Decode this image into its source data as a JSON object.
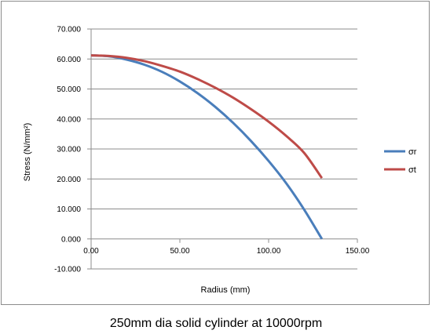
{
  "caption": "250mm dia solid cylinder at 10000rpm",
  "chart_data": {
    "type": "line",
    "title": "",
    "xlabel": "Radius (mm)",
    "ylabel": "Stress (N/mm²)",
    "xlim": [
      0,
      150
    ],
    "ylim": [
      -10,
      70
    ],
    "x_ticks": [
      "0.00",
      "50.00",
      "100.00",
      "150.00"
    ],
    "y_ticks": [
      "-10.000",
      "0.000",
      "10.000",
      "20.000",
      "30.000",
      "40.000",
      "50.000",
      "60.000",
      "70.000"
    ],
    "grid": "horizontal",
    "legend_position": "right",
    "x": [
      0,
      10,
      20,
      30,
      40,
      50,
      60,
      70,
      80,
      90,
      100,
      110,
      120,
      130
    ],
    "series": [
      {
        "name": "σr",
        "color": "#4a7ebb",
        "values": [
          61.2,
          60.9,
          59.8,
          58.1,
          55.7,
          52.5,
          48.6,
          44.0,
          38.7,
          32.7,
          26.0,
          18.5,
          9.8,
          0.0
        ]
      },
      {
        "name": "σt",
        "color": "#be4b48",
        "values": [
          61.2,
          61.0,
          60.4,
          59.3,
          57.7,
          55.8,
          53.3,
          50.4,
          47.1,
          43.3,
          39.1,
          34.3,
          28.7,
          20.3
        ]
      }
    ]
  }
}
